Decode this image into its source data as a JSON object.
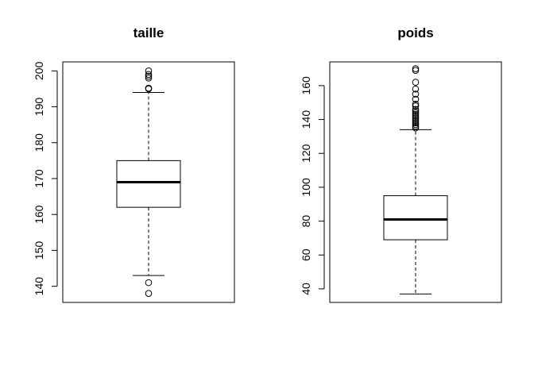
{
  "chart_data": [
    {
      "type": "boxplot",
      "title": "taille",
      "ylim": [
        135.5,
        202.5
      ],
      "yticks": [
        140,
        150,
        160,
        170,
        180,
        190,
        200
      ],
      "stats": {
        "whisker_low": 143,
        "q1": 162,
        "median": 169,
        "q3": 175,
        "whisker_high": 194
      },
      "outliers": [
        138,
        141,
        195,
        195.2,
        198,
        198.5,
        199,
        200
      ],
      "colors": {
        "box": "#000000",
        "median": "#000000",
        "background": "#ffffff"
      }
    },
    {
      "type": "boxplot",
      "title": "poids",
      "ylim": [
        32,
        174
      ],
      "yticks": [
        40,
        60,
        80,
        100,
        120,
        140,
        160
      ],
      "stats": {
        "whisker_low": 37,
        "q1": 69,
        "median": 81,
        "q3": 95,
        "whisker_high": 134
      },
      "outliers": [
        135,
        136,
        137,
        138,
        139,
        140,
        141,
        142,
        143,
        144,
        145,
        146,
        148,
        149,
        152,
        155,
        158,
        162,
        169,
        170
      ],
      "colors": {
        "box": "#000000",
        "median": "#000000",
        "background": "#ffffff"
      }
    }
  ]
}
